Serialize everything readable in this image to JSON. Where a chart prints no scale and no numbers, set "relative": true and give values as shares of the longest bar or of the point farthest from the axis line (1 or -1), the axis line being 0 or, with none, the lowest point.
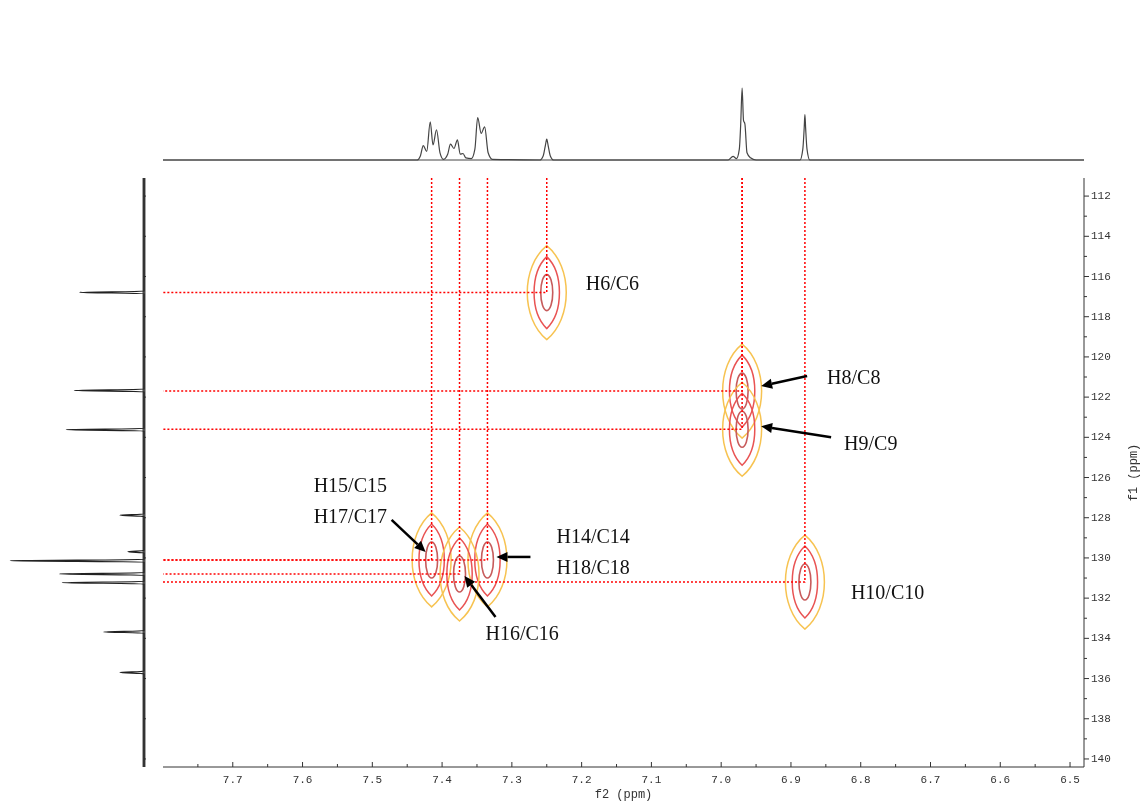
{
  "chart_data": [
    {
      "type": "line",
      "relative": true,
      "xlim": [
        7.8,
        6.48
      ],
      "color": "#444444",
      "x": [
        7.8,
        7.436,
        7.431,
        7.427,
        7.422,
        7.417,
        7.413,
        7.408,
        7.403,
        7.398,
        7.392,
        7.388,
        7.383,
        7.378,
        7.374,
        7.37,
        7.366,
        7.358,
        7.353,
        7.349,
        7.344,
        7.339,
        7.334,
        7.328,
        7.26,
        7.255,
        7.252,
        7.25,
        7.248,
        7.245,
        7.24,
        6.99,
        6.983,
        6.978,
        6.974,
        6.972,
        6.97,
        6.968,
        6.966,
        6.963,
        6.958,
        6.95,
        6.887,
        6.883,
        6.881,
        6.88,
        6.879,
        6.877,
        6.873,
        6.48
      ],
      "values": [
        0,
        0,
        0.06,
        0.2,
        0.12,
        0.53,
        0.21,
        0.42,
        0.1,
        0.01,
        0.08,
        0.22,
        0.16,
        0.28,
        0.08,
        0.09,
        0.03,
        0.02,
        0.15,
        0.59,
        0.37,
        0.46,
        0.1,
        0.01,
        0,
        0.06,
        0.2,
        0.29,
        0.2,
        0.06,
        0,
        0,
        0.05,
        0.02,
        0.15,
        0.5,
        1,
        0.55,
        0.5,
        0.1,
        0.03,
        0,
        0,
        0.15,
        0.45,
        0.63,
        0.45,
        0.15,
        0,
        0
      ]
    },
    {
      "type": "line",
      "relative": true,
      "orientation": "horizontal",
      "ylim": [
        140.4,
        111.1
      ],
      "yticks": [
        112,
        114,
        116,
        118,
        120,
        122,
        124,
        126,
        128,
        130,
        132,
        134,
        136,
        138,
        140
      ],
      "tick_labels": false,
      "color": "#222222",
      "x": [
        111.1,
        116.73,
        116.79,
        116.85,
        121.61,
        121.67,
        121.73,
        123.56,
        123.62,
        123.68,
        127.82,
        127.88,
        127.94,
        129.63,
        129.69,
        129.75,
        130.08,
        130.14,
        130.2,
        130.74,
        130.8,
        130.86,
        131.17,
        131.23,
        131.29,
        133.62,
        133.68,
        133.74,
        135.64,
        135.7,
        135.76,
        140.4
      ],
      "values": [
        0,
        0,
        -0.48,
        0,
        0,
        -0.52,
        0,
        0,
        -0.58,
        0,
        0,
        -0.18,
        0,
        0,
        -0.12,
        0,
        0,
        -1,
        0,
        0,
        -0.63,
        0,
        0,
        -0.61,
        0,
        0,
        -0.3,
        0,
        0,
        -0.18,
        0,
        0
      ]
    },
    {
      "type": "scatter",
      "xlabel": "f2 (ppm)",
      "ylabel": "f1 (ppm)",
      "xlim": [
        7.8,
        6.48
      ],
      "ylim": [
        140.4,
        111.1
      ],
      "line_style": "dotted",
      "xticks": [
        {
          "value": 7.75,
          "label": null
        },
        7.7,
        {
          "value": 7.65,
          "label": null
        },
        7.6,
        {
          "value": 7.55,
          "label": null
        },
        7.5,
        {
          "value": 7.45,
          "label": null
        },
        7.4,
        {
          "value": 7.35,
          "label": null
        },
        7.3,
        {
          "value": 7.25,
          "label": null
        },
        7.2,
        {
          "value": 7.15,
          "label": null
        },
        7.1,
        {
          "value": 7.05,
          "label": null
        },
        {
          "value": 7,
          "label": "7.0"
        },
        {
          "value": 6.95,
          "label": null
        },
        6.9,
        {
          "value": 6.85,
          "label": null
        },
        6.8,
        {
          "value": 6.75,
          "label": null
        },
        6.7,
        {
          "value": 6.65,
          "label": null
        },
        6.6,
        {
          "value": 6.55,
          "label": null
        },
        6.5
      ],
      "yticks": [
        112,
        {
          "value": 113,
          "label": null
        },
        114,
        {
          "value": 115,
          "label": null
        },
        116,
        {
          "value": 117,
          "label": null
        },
        118,
        {
          "value": 119,
          "label": null
        },
        120,
        {
          "value": 121,
          "label": null
        },
        122,
        {
          "value": 123,
          "label": null
        },
        124,
        {
          "value": 125,
          "label": null
        },
        126,
        {
          "value": 127,
          "label": null
        },
        128,
        {
          "value": 129,
          "label": null
        },
        130,
        {
          "value": 131,
          "label": null
        },
        132,
        {
          "value": 133,
          "label": null
        },
        134,
        {
          "value": 135,
          "label": null
        },
        136,
        {
          "value": 137,
          "label": null
        },
        138,
        {
          "value": 139,
          "label": null
        },
        140
      ],
      "series": [
        {
          "color": "#c75b5b",
          "x": [
            7.25,
            6.97,
            6.97,
            6.88,
            7.415,
            7.335,
            7.375
          ],
          "values": [
            116.8,
            121.7,
            123.6,
            131.2,
            130.1,
            130.1,
            130.8
          ]
        },
        {
          "type": "line",
          "color": "#ff0000",
          "x": [
            7.25,
            7.25,
            7.8
          ],
          "values": [
            111.1,
            116.8,
            116.8
          ]
        },
        {
          "type": "line",
          "color": "#ff0000",
          "x": [
            6.97,
            6.97,
            7.8
          ],
          "values": [
            111.1,
            121.7,
            121.7
          ]
        },
        {
          "type": "line",
          "color": "#ff0000",
          "x": [
            6.97,
            6.97,
            7.8
          ],
          "values": [
            111.1,
            123.6,
            123.6
          ]
        },
        {
          "type": "line",
          "color": "#ff0000",
          "x": [
            6.88,
            6.88,
            7.8
          ],
          "values": [
            111.1,
            131.2,
            131.2
          ]
        },
        {
          "type": "line",
          "color": "#ff0000",
          "x": [
            7.415,
            7.415,
            7.8
          ],
          "values": [
            111.1,
            130.1,
            130.1
          ]
        },
        {
          "type": "line",
          "color": "#ff0000",
          "x": [
            7.335,
            7.335,
            7.8
          ],
          "values": [
            111.1,
            130.1,
            130.1
          ]
        },
        {
          "type": "line",
          "color": "#ff0000",
          "x": [
            7.375,
            7.375,
            7.8
          ],
          "values": [
            111.1,
            130.8,
            130.8
          ]
        }
      ],
      "annotations": [
        {
          "text": "H6/C6",
          "x": 7.25,
          "y": 116.8
        },
        "H8/C8",
        "H9/C9",
        {
          "text": "H10/C10",
          "x": 6.88,
          "y": 131.2
        },
        "H15/C15",
        {
          "text": "H17/C17",
          "x": 7.415,
          "y": 130.1
        },
        "H14/C14",
        "H18/C18",
        {
          "text": "H16/C16",
          "x": 7.375,
          "y": 130.8
        }
      ]
    }
  ]
}
